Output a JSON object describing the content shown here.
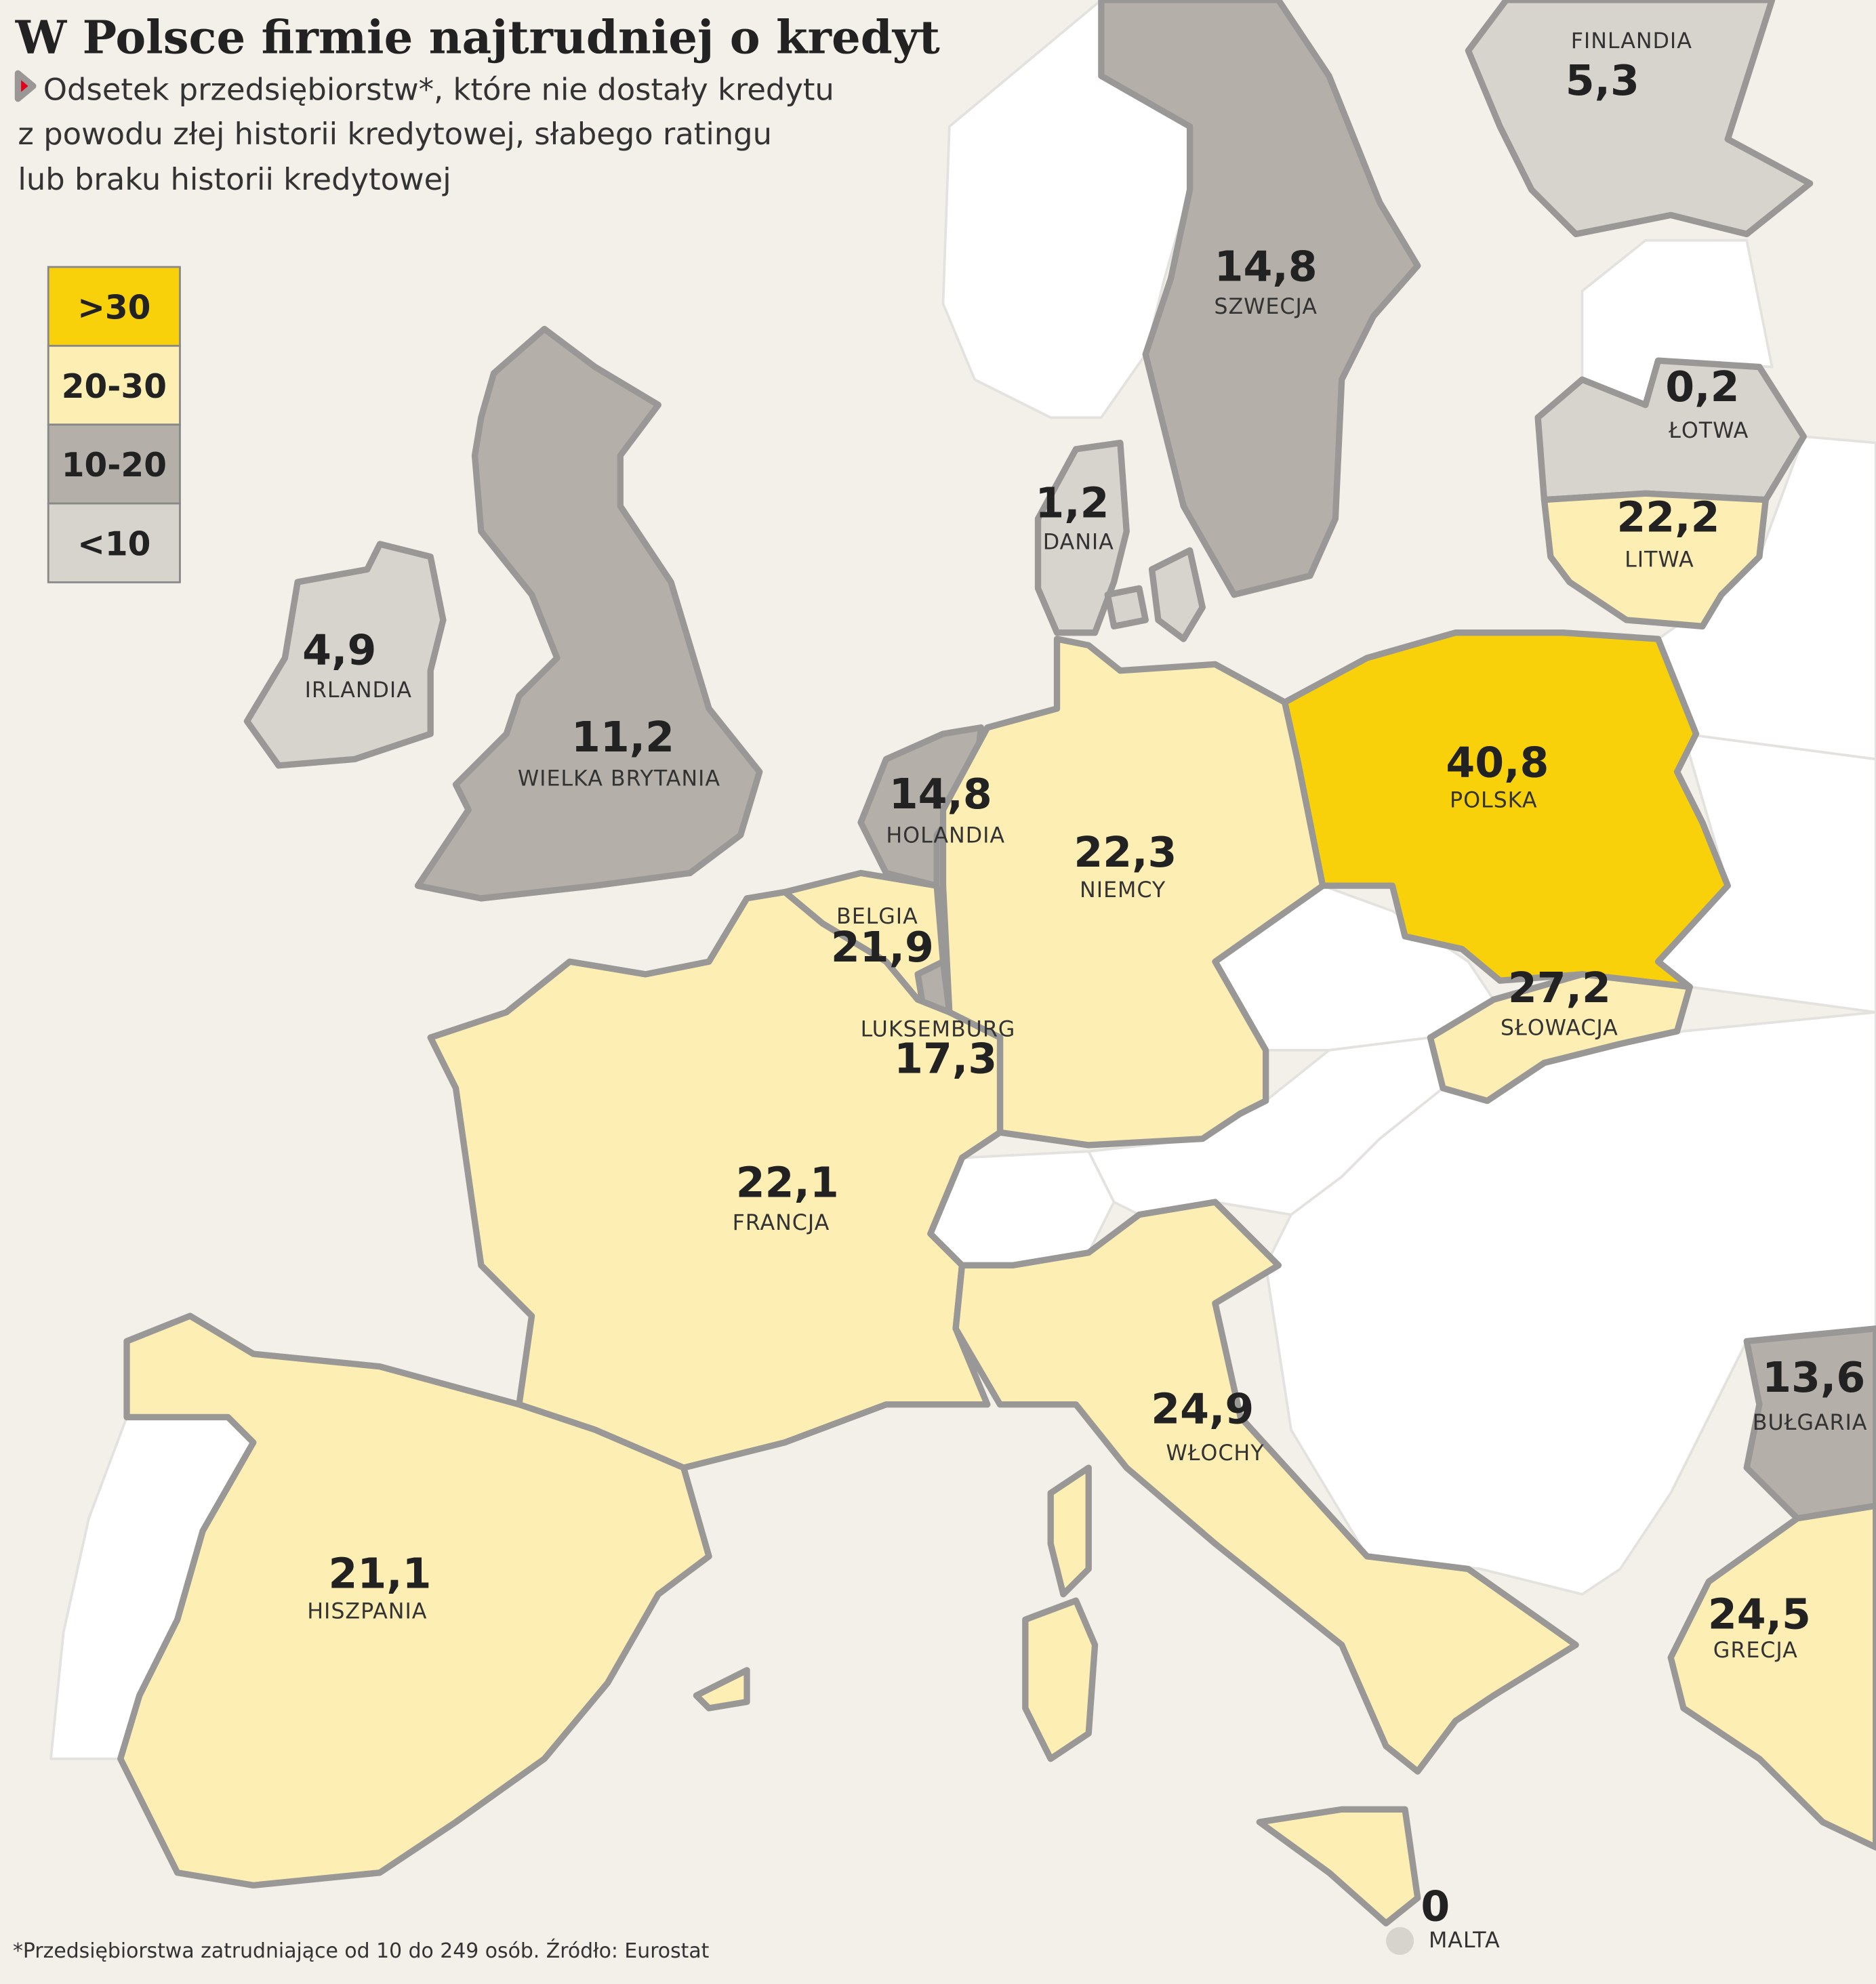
{
  "chart_data": {
    "type": "map",
    "title": "W Polsce firmie najtrudniej o kredyt",
    "subtitle_lines": [
      "Odsetek przedsiębiorstw*, które nie dostały kredytu",
      "z powodu złej historii kredytowej, słabego ratingu",
      "lub braku historii kredytowej"
    ],
    "legend": [
      {
        "label": ">30",
        "color": "#f9d10a"
      },
      {
        "label": "20-30",
        "color": "#fdefb4"
      },
      {
        "label": "10-20",
        "color": "#b4b0a9"
      },
      {
        "label": "<10",
        "color": "#d7d3cd"
      }
    ],
    "regions": [
      {
        "name": "FINLANDIA",
        "value": 5.3,
        "value_label": "5,3",
        "color": "#d7d3cd"
      },
      {
        "name": "SZWECJA",
        "value": 14.8,
        "value_label": "14,8",
        "color": "#b4b0a9"
      },
      {
        "name": "ŁOTWA",
        "value": 0.2,
        "value_label": "0,2",
        "color": "#d7d3cd"
      },
      {
        "name": "LITWA",
        "value": 22.2,
        "value_label": "22,2",
        "color": "#fdefb4"
      },
      {
        "name": "DANIA",
        "value": 1.2,
        "value_label": "1,2",
        "color": "#d7d3cd"
      },
      {
        "name": "IRLANDIA",
        "value": 4.9,
        "value_label": "4,9",
        "color": "#d7d3cd"
      },
      {
        "name": "WIELKA BRYTANIA",
        "value": 11.2,
        "value_label": "11,2",
        "color": "#b4b0a9"
      },
      {
        "name": "HOLANDIA",
        "value": 14.8,
        "value_label": "14,8",
        "color": "#b4b0a9"
      },
      {
        "name": "NIEMCY",
        "value": 22.3,
        "value_label": "22,3",
        "color": "#fdefb4"
      },
      {
        "name": "POLSKA",
        "value": 40.8,
        "value_label": "40,8",
        "color": "#f9d10a"
      },
      {
        "name": "BELGIA",
        "value": 21.9,
        "value_label": "21,9",
        "color": "#fdefb4"
      },
      {
        "name": "LUKSEMBURG",
        "value": 17.3,
        "value_label": "17,3",
        "color": "#b4b0a9"
      },
      {
        "name": "SŁOWACJA",
        "value": 27.2,
        "value_label": "27,2",
        "color": "#fdefb4"
      },
      {
        "name": "FRANCJA",
        "value": 22.1,
        "value_label": "22,1",
        "color": "#fdefb4"
      },
      {
        "name": "WŁOCHY",
        "value": 24.9,
        "value_label": "24,9",
        "color": "#fdefb4"
      },
      {
        "name": "BUŁGARIA",
        "value": 13.6,
        "value_label": "13,6",
        "color": "#b4b0a9"
      },
      {
        "name": "GRECJA",
        "value": 24.5,
        "value_label": "24,5",
        "color": "#fdefb4"
      },
      {
        "name": "HISZPANIA",
        "value": 21.1,
        "value_label": "21,1",
        "color": "#fdefb4"
      },
      {
        "name": "MALTA",
        "value": 0,
        "value_label": "0",
        "color": "#d7d3cd"
      }
    ],
    "footnote": "*Przedsiębiorstwa zatrudniające od 10 do 249 osób. Źródło: Eurostat"
  }
}
